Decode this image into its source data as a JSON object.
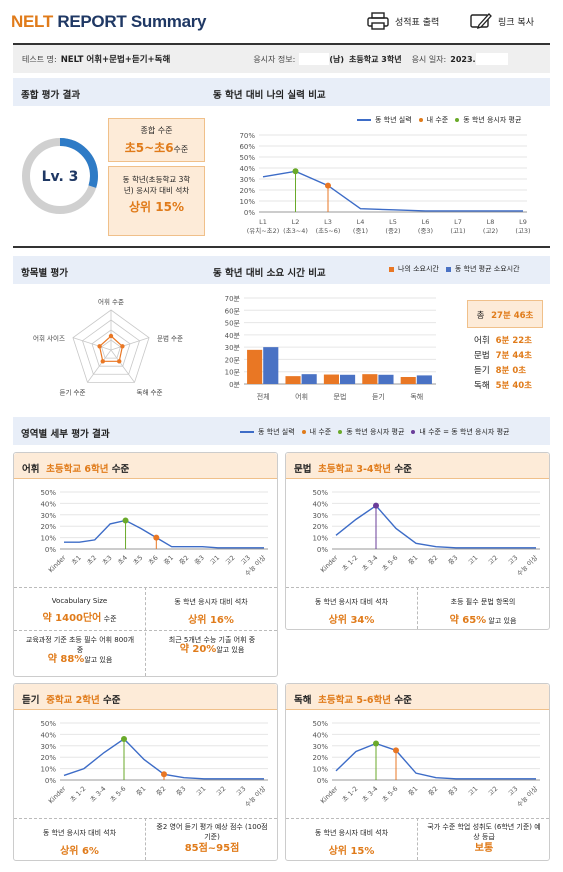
{
  "header": {
    "brand_accent": "NELT",
    "brand_rest": " REPORT Summary",
    "print_label": "성적표 출력",
    "copy_label": "링크 복사"
  },
  "info": {
    "test_label": "테스트 명:",
    "test_value": "NELT 어휘+문법+듣기+독해",
    "taker_label": "응시자 정보:",
    "taker_gender": "(남)",
    "taker_grade": "초등학교 3학년",
    "date_label": "응시 일자:",
    "date_value": "2023."
  },
  "sec1": {
    "title_left": "종합 평가 결과",
    "title_right": "동 학년 대비 나의 실력 비교",
    "level": "Lv. 3",
    "level_progress": 0.3,
    "overall_label": "종합 수준",
    "overall_value": "초5~초6",
    "overall_suffix": "수준",
    "rank_label": "동 학년(초등학교 3학년) 응시자 대비 석차",
    "rank_value": "상위 15%",
    "legend": {
      "line": "동 학년 실력",
      "me": "내 수준",
      "avg": "동 학년 응시자 평균"
    }
  },
  "sec2": {
    "title_left": "항목별 평가",
    "title_right": "동 학년 대비 소요 시간 비교",
    "legend_mine": "나의 소요시간",
    "legend_avg": "동 학년 평균 소요시간",
    "radar_labels": [
      "어휘 수준",
      "문법 수준",
      "독해 수준",
      "듣기 수준",
      "어휘 사이즈"
    ],
    "radar_values": [
      0.35,
      0.3,
      0.35,
      0.35,
      0.3
    ],
    "total_label": "총",
    "total_value": "27분 46초",
    "times": [
      {
        "label": "어휘",
        "value": "6분 22초"
      },
      {
        "label": "문법",
        "value": "7분 44초"
      },
      {
        "label": "듣기",
        "value": "8분 0초"
      },
      {
        "label": "독해",
        "value": "5분 40초"
      }
    ]
  },
  "sec3": {
    "title": "영역별 세부 평가 결과",
    "legend": {
      "line": "동 학년 실력",
      "me": "내 수준",
      "avg": "동 학년 응시자 평균",
      "eq": "내 수준 = 동 학년 응시자 평균"
    }
  },
  "vocab": {
    "name": "어휘",
    "level": "초등학교 6학년",
    "suffix": "수준",
    "c1_label": "Vocabulary Size",
    "c1_value": "약 1400단어",
    "c1_suffix": "수준",
    "c2_label": "동 학년 응시자 대비 석차",
    "c2_value": "상위 16%",
    "c3_label": "교육과정 기준 초등 필수 어휘 800개 중",
    "c3_value": "약 88%",
    "c3_suffix": "알고 있음",
    "c4_label": "최근 5개년 수능 기출 어휘 중",
    "c4_value": "약 20%",
    "c4_suffix": "알고 있음"
  },
  "grammar": {
    "name": "문법",
    "level": "초등학교 3-4학년",
    "suffix": "수준",
    "c1_label": "동 학년 응시자 대비 석차",
    "c1_value": "상위 34%",
    "c2_label": "초등 필수 문법 항목의",
    "c2_value": "약 65%",
    "c2_suffix": "알고 있음"
  },
  "listening": {
    "name": "듣기",
    "level": "중학교 2학년",
    "suffix": "수준",
    "c1_label": "동 학년 응시자 대비 석차",
    "c1_value": "상위 6%",
    "c2_label": "중2 영어 듣기 평가 예상 점수 (100점 기준)",
    "c2_value": "85점~95점"
  },
  "reading": {
    "name": "독해",
    "level": "초등학교 5-6학년",
    "suffix": "수준",
    "c1_label": "동 학년 응시자 대비 석차",
    "c1_value": "상위 15%",
    "c2_label": "국가 수준 학업 성취도 (6학년 기준) 예상 등급",
    "c2_value": "보통"
  },
  "chart_data": [
    {
      "type": "line",
      "title": "동 학년 대비 나의 실력 비교",
      "categories": [
        "L1 (유치~초2)",
        "L2 (초3~4)",
        "L3 (초5~6)",
        "L4 (중1)",
        "L5 (중2)",
        "L6 (중3)",
        "L7 (고1)",
        "L8 (고2)",
        "L9 (고3)"
      ],
      "series": [
        {
          "name": "동 학년 실력",
          "values": [
            32,
            37,
            24,
            3,
            2,
            1,
            1,
            1,
            1
          ]
        }
      ],
      "avg_index": 1,
      "me_index": 2,
      "ylim": [
        0,
        70
      ],
      "yticks": [
        0,
        10,
        20,
        30,
        40,
        50,
        60,
        70
      ],
      "yfmt": "%"
    },
    {
      "type": "bar",
      "title": "동 학년 대비 소요 시간 비교",
      "categories": [
        "전체",
        "어휘",
        "문법",
        "듣기",
        "독해"
      ],
      "series": [
        {
          "name": "나의 소요시간",
          "values": [
            27.8,
            6.4,
            7.7,
            8.0,
            5.7
          ]
        },
        {
          "name": "동 학년 평균 소요시간",
          "values": [
            30.0,
            8.0,
            7.5,
            7.5,
            7.0
          ]
        }
      ],
      "ylim": [
        0,
        70
      ],
      "yticks": [
        0,
        10,
        20,
        30,
        40,
        50,
        60,
        70
      ],
      "yfmt": "분"
    },
    {
      "type": "line",
      "title": "어휘",
      "categories": [
        "Kinder",
        "초1",
        "초2",
        "초3",
        "초4",
        "초5",
        "초6",
        "중1",
        "중2",
        "중3",
        "고1",
        "고2",
        "고3",
        "수능 이상"
      ],
      "series": [
        {
          "name": "동 학년 실력",
          "values": [
            6,
            6,
            8,
            22,
            25,
            18,
            10,
            2,
            2,
            2,
            1,
            1,
            1,
            1
          ]
        }
      ],
      "avg_index": 4,
      "me_index": 6,
      "ylim": [
        0,
        50
      ],
      "yticks": [
        0,
        10,
        20,
        30,
        40,
        50
      ],
      "yfmt": "%"
    },
    {
      "type": "line",
      "title": "문법",
      "categories": [
        "Kinder",
        "초 1-2",
        "초 3-4",
        "초 5-6",
        "중1",
        "중2",
        "중3",
        "고1",
        "고2",
        "고3",
        "수능 이상"
      ],
      "series": [
        {
          "name": "동 학년 실력",
          "values": [
            12,
            26,
            38,
            18,
            5,
            2,
            1,
            1,
            1,
            1,
            1
          ]
        }
      ],
      "avg_index": 2,
      "me_index": 2,
      "ylim": [
        0,
        50
      ],
      "yticks": [
        0,
        10,
        20,
        30,
        40,
        50
      ],
      "yfmt": "%"
    },
    {
      "type": "line",
      "title": "듣기",
      "categories": [
        "Kinder",
        "초 1-2",
        "초 3-4",
        "초 5-6",
        "중1",
        "중2",
        "중3",
        "고1",
        "고2",
        "고3",
        "수능 이상"
      ],
      "series": [
        {
          "name": "동 학년 실력",
          "values": [
            4,
            10,
            24,
            36,
            18,
            5,
            2,
            1,
            1,
            1,
            1
          ]
        }
      ],
      "avg_index": 3,
      "me_index": 5,
      "ylim": [
        0,
        50
      ],
      "yticks": [
        0,
        10,
        20,
        30,
        40,
        50
      ],
      "yfmt": "%"
    },
    {
      "type": "line",
      "title": "독해",
      "categories": [
        "Kinder",
        "초 1-2",
        "초 3-4",
        "초 5-6",
        "중1",
        "중2",
        "중3",
        "고1",
        "고2",
        "고3",
        "수능 이상"
      ],
      "series": [
        {
          "name": "동 학년 실력",
          "values": [
            8,
            25,
            32,
            26,
            6,
            2,
            1,
            1,
            1,
            1,
            1
          ]
        }
      ],
      "avg_index": 2,
      "me_index": 3,
      "ylim": [
        0,
        50
      ],
      "yticks": [
        0,
        10,
        20,
        30,
        40,
        50
      ],
      "yfmt": "%"
    }
  ]
}
